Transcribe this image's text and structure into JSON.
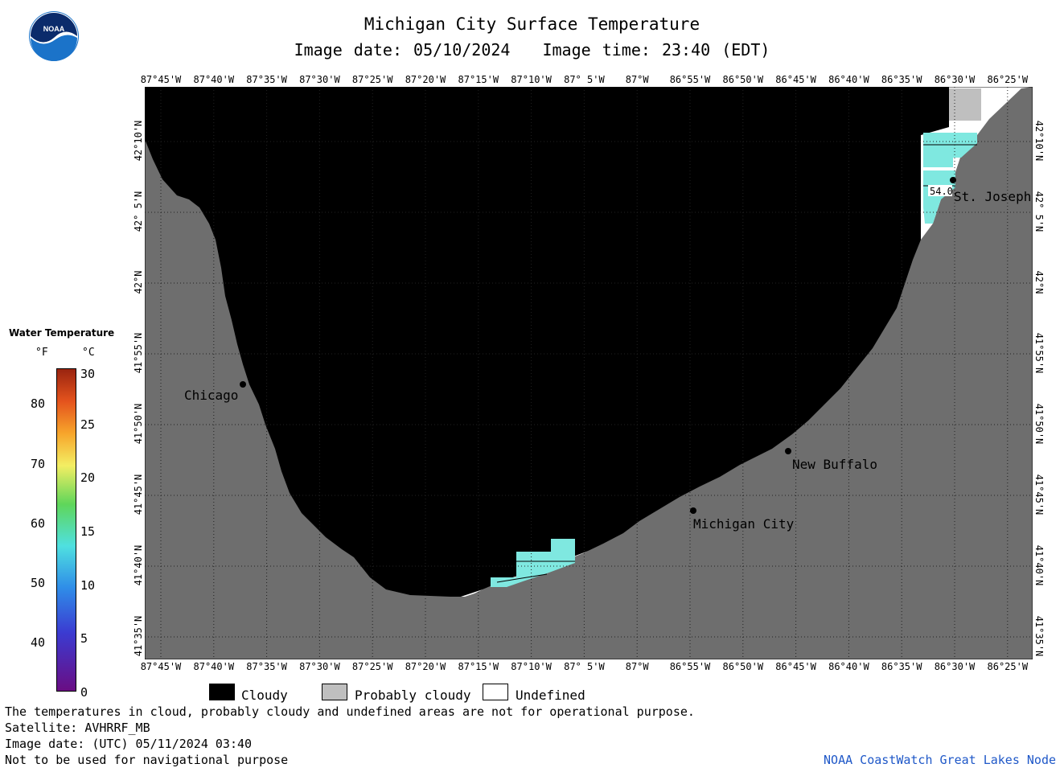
{
  "header": {
    "title": "Michigan City Surface Temperature",
    "image_date_label": "Image date: 05/10/2024",
    "image_time_label": "Image time: 23:40 (EDT)"
  },
  "logo": {
    "text": "NOAA",
    "colors": {
      "outer": "#ffffff",
      "blue": "#1b73c9",
      "navy": "#0b2b6b"
    }
  },
  "map": {
    "lon_ticks": [
      "87°45'W",
      "87°40'W",
      "87°35'W",
      "87°30'W",
      "87°25'W",
      "87°20'W",
      "87°15'W",
      "87°10'W",
      "87° 5'W",
      "87°W",
      "86°55'W",
      "86°50'W",
      "86°45'W",
      "86°40'W",
      "86°35'W",
      "86°30'W",
      "86°25'W"
    ],
    "lat_ticks": [
      "42°10'N",
      "42° 5'N",
      "42°N",
      "41°55'N",
      "41°50'N",
      "41°45'N",
      "41°40'N",
      "41°35'N"
    ],
    "cities": [
      {
        "name": "Chicago"
      },
      {
        "name": "Michigan City"
      },
      {
        "name": "New Buffalo"
      },
      {
        "name": "St. Joseph"
      }
    ],
    "contour_label": "54.0",
    "colors": {
      "cloud": "#000000",
      "land": "#6e6e6e",
      "probably_cloudy": "#bfbfbf",
      "undefined": "#ffffff",
      "water_54": "#7fe8e0"
    }
  },
  "legend": {
    "title": "Water Temperature",
    "unit_f": "°F",
    "unit_c": "°C",
    "f_ticks": [
      "80",
      "70",
      "60",
      "50",
      "40"
    ],
    "c_ticks": [
      "30",
      "25",
      "20",
      "15",
      "10",
      "5",
      "0"
    ]
  },
  "key": {
    "cloudy": "Cloudy",
    "probably_cloudy": "Probably cloudy",
    "undefined": "Undefined"
  },
  "footer": {
    "note": "The temperatures in cloud, probably cloudy and undefined areas are not for operational purpose.",
    "satellite": "Satellite: AVHRRF_MB",
    "utc_date": "Image date: (UTC) 05/11/2024  03:40",
    "nav_warning": "Not to be used for navigational purpose",
    "credit": "NOAA CoastWatch Great Lakes Node"
  }
}
